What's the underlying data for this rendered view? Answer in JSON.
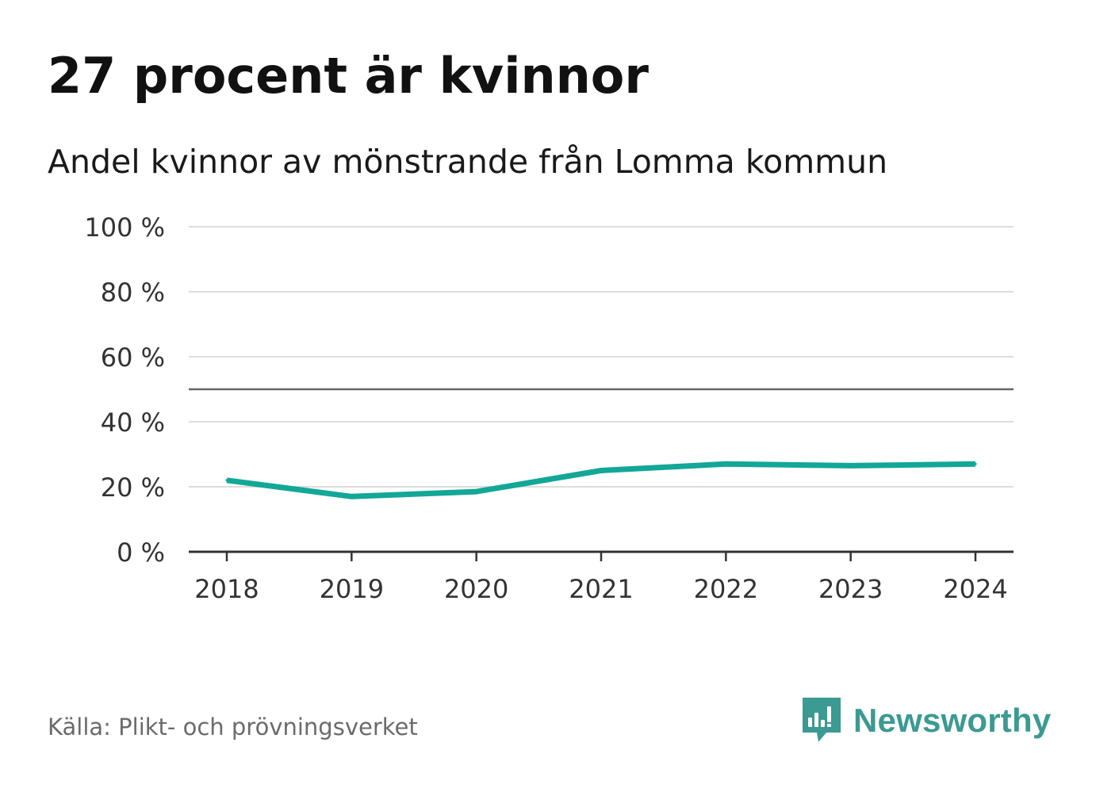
{
  "header": {
    "title": "27 procent är kvinnor",
    "subtitle": "Andel kvinnor av mönstrande från Lomma kommun"
  },
  "footer": {
    "source": "Källa: Plikt- och prövningsverket",
    "brand": "Newsworthy",
    "brand_icon": "bar-chart-speech-bubble-icon"
  },
  "colors": {
    "line": "#12a797",
    "grid": "#dddddd",
    "reference": "#666666",
    "axis": "#333333",
    "brand": "#3b9a91"
  },
  "chart_data": {
    "type": "line",
    "title": "27 procent är kvinnor",
    "subtitle": "Andel kvinnor av mönstrande från Lomma kommun",
    "xlabel": "",
    "ylabel": "",
    "x": [
      "2018",
      "2019",
      "2020",
      "2021",
      "2022",
      "2023",
      "2024"
    ],
    "series": [
      {
        "values": [
          22,
          17,
          18.5,
          25,
          27,
          26.5,
          27
        ]
      }
    ],
    "ylim": [
      0,
      100
    ],
    "yticks": [
      0,
      20,
      40,
      60,
      80,
      100
    ],
    "ytick_labels": [
      "0 %",
      "20 %",
      "40 %",
      "60 %",
      "80 %",
      "100 %"
    ],
    "reference_line": 50,
    "grid": true,
    "legend": "none"
  }
}
